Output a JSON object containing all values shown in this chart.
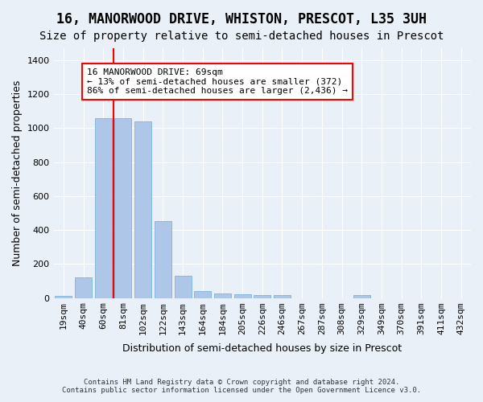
{
  "title": "16, MANORWOOD DRIVE, WHISTON, PRESCOT, L35 3UH",
  "subtitle": "Size of property relative to semi-detached houses in Prescot",
  "xlabel": "Distribution of semi-detached houses by size in Prescot",
  "ylabel": "Number of semi-detached properties",
  "footer1": "Contains HM Land Registry data © Crown copyright and database right 2024.",
  "footer2": "Contains public sector information licensed under the Open Government Licence v3.0.",
  "categories": [
    "19sqm",
    "40sqm",
    "60sqm",
    "81sqm",
    "102sqm",
    "122sqm",
    "143sqm",
    "164sqm",
    "184sqm",
    "205sqm",
    "226sqm",
    "246sqm",
    "267sqm",
    "287sqm",
    "308sqm",
    "329sqm",
    "349sqm",
    "370sqm",
    "391sqm",
    "411sqm",
    "432sqm"
  ],
  "values": [
    10,
    122,
    1058,
    1058,
    1040,
    450,
    130,
    40,
    25,
    20,
    15,
    15,
    0,
    0,
    0,
    15,
    0,
    0,
    0,
    0,
    0
  ],
  "bar_color": "#aec6e8",
  "bar_edgecolor": "#6aaed6",
  "background_color": "#eaf0f8",
  "grid_color": "#ffffff",
  "red_line_x": 2.5,
  "annotation_line1": "16 MANORWOOD DRIVE: 69sqm",
  "annotation_line2": "← 13% of semi-detached houses are smaller (372)",
  "annotation_line3": "86% of semi-detached houses are larger (2,436) →",
  "ylim": [
    0,
    1470
  ],
  "title_fontsize": 12,
  "subtitle_fontsize": 10,
  "ylabel_fontsize": 9,
  "xlabel_fontsize": 9,
  "tick_fontsize": 8,
  "annotation_fontsize": 8
}
